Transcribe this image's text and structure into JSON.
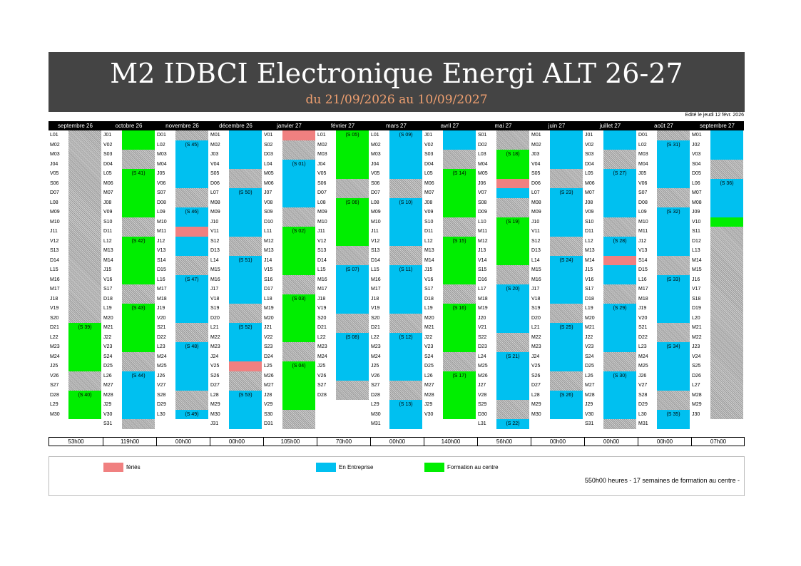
{
  "header": {
    "title": "M2 IDBCI Electronique Energi ALT 26-27",
    "subtitle": "du 21/09/2026 au 10/09/2027",
    "edited": "Edité le jeudi 12 févr. 2026"
  },
  "colors": {
    "holiday": "#f08080",
    "company": "#00c0f0",
    "training": "#00ee00",
    "title_bg": "#444444",
    "subtitle": "#f0a070"
  },
  "months": [
    {
      "name": "septembre 26",
      "start_dow": 1,
      "days": 30,
      "segments": [
        [
          "hatch",
          1,
          20
        ],
        [
          "green",
          21,
          25
        ],
        [
          "hatch",
          26,
          27
        ],
        [
          "green",
          28,
          30
        ]
      ],
      "labels": [
        [
          21,
          "(S 39)"
        ],
        [
          28,
          "(S 40)"
        ]
      ]
    },
    {
      "name": "octobre 26",
      "start_dow": 4,
      "days": 31,
      "segments": [
        [
          "hatch",
          1,
          1
        ],
        [
          "green",
          1,
          2
        ],
        [
          "hatch",
          3,
          4
        ],
        [
          "green",
          5,
          9
        ],
        [
          "hatch",
          10,
          11
        ],
        [
          "green",
          12,
          16
        ],
        [
          "hatch",
          17,
          18
        ],
        [
          "green",
          19,
          23
        ],
        [
          "hatch",
          24,
          25
        ],
        [
          "blue",
          26,
          30
        ],
        [
          "hatch",
          31,
          31
        ]
      ],
      "labels": [
        [
          5,
          "(S 41)"
        ],
        [
          12,
          "(S 42)"
        ],
        [
          19,
          "(S 43)"
        ],
        [
          26,
          "(S 44)"
        ]
      ]
    },
    {
      "name": "novembre 26",
      "start_dow": 0,
      "days": 30,
      "segments": [
        [
          "hatch",
          1,
          1
        ],
        [
          "blue",
          2,
          6
        ],
        [
          "hatch",
          7,
          8
        ],
        [
          "blue",
          9,
          10
        ],
        [
          "pink",
          11,
          11
        ],
        [
          "blue",
          12,
          13
        ],
        [
          "hatch",
          14,
          15
        ],
        [
          "blue",
          16,
          20
        ],
        [
          "hatch",
          21,
          22
        ],
        [
          "blue",
          23,
          27
        ],
        [
          "hatch",
          28,
          29
        ],
        [
          "blue",
          30,
          30
        ]
      ],
      "labels": [
        [
          2,
          "(S 45)"
        ],
        [
          9,
          "(S 46)"
        ],
        [
          16,
          "(S 47)"
        ],
        [
          23,
          "(S 48)"
        ],
        [
          30,
          "(S 49)"
        ]
      ]
    },
    {
      "name": "décembre 26",
      "start_dow": 2,
      "days": 31,
      "segments": [
        [
          "blue",
          1,
          4
        ],
        [
          "hatch",
          5,
          6
        ],
        [
          "blue",
          7,
          11
        ],
        [
          "hatch",
          12,
          13
        ],
        [
          "blue",
          14,
          18
        ],
        [
          "hatch",
          19,
          20
        ],
        [
          "blue",
          21,
          24
        ],
        [
          "pink",
          25,
          25
        ],
        [
          "hatch",
          26,
          27
        ],
        [
          "blue",
          28,
          31
        ]
      ],
      "labels": [
        [
          7,
          "(S 50)"
        ],
        [
          14,
          "(S 51)"
        ],
        [
          21,
          "(S 52)"
        ],
        [
          28,
          "(S 53)"
        ]
      ]
    },
    {
      "name": "janvier 27",
      "start_dow": 5,
      "days": 31,
      "segments": [
        [
          "pink",
          1,
          1
        ],
        [
          "hatch",
          2,
          3
        ],
        [
          "blue",
          4,
          8
        ],
        [
          "hatch",
          9,
          10
        ],
        [
          "green",
          11,
          15
        ],
        [
          "hatch",
          16,
          17
        ],
        [
          "green",
          18,
          22
        ],
        [
          "hatch",
          23,
          24
        ],
        [
          "green",
          25,
          29
        ],
        [
          "hatch",
          30,
          31
        ]
      ],
      "labels": [
        [
          4,
          "(S 01)"
        ],
        [
          11,
          "(S 02)"
        ],
        [
          18,
          "(S 03)"
        ],
        [
          25,
          "(S 04)"
        ]
      ]
    },
    {
      "name": "février 27",
      "start_dow": 1,
      "days": 28,
      "segments": [
        [
          "green",
          1,
          5
        ],
        [
          "hatch",
          6,
          7
        ],
        [
          "green",
          8,
          12
        ],
        [
          "hatch",
          13,
          14
        ],
        [
          "blue",
          15,
          19
        ],
        [
          "hatch",
          20,
          21
        ],
        [
          "blue",
          22,
          26
        ],
        [
          "hatch",
          27,
          28
        ]
      ],
      "labels": [
        [
          1,
          "(S 05)"
        ],
        [
          8,
          "(S 06)"
        ],
        [
          15,
          "(S 07)"
        ],
        [
          22,
          "(S 08)"
        ]
      ]
    },
    {
      "name": "mars 27",
      "start_dow": 1,
      "days": 31,
      "segments": [
        [
          "blue",
          1,
          5
        ],
        [
          "hatch",
          6,
          7
        ],
        [
          "blue",
          8,
          12
        ],
        [
          "hatch",
          13,
          14
        ],
        [
          "blue",
          15,
          19
        ],
        [
          "hatch",
          20,
          21
        ],
        [
          "blue",
          22,
          26
        ],
        [
          "hatch",
          27,
          28
        ],
        [
          "blue",
          29,
          31
        ]
      ],
      "labels": [
        [
          1,
          "(S 09)"
        ],
        [
          8,
          "(S 10)"
        ],
        [
          15,
          "(S 11)"
        ],
        [
          22,
          "(S 12)"
        ],
        [
          29,
          "(S 13)"
        ]
      ]
    },
    {
      "name": "avril 27",
      "start_dow": 4,
      "days": 30,
      "segments": [
        [
          "blue",
          1,
          2
        ],
        [
          "hatch",
          3,
          4
        ],
        [
          "green",
          5,
          9
        ],
        [
          "hatch",
          10,
          11
        ],
        [
          "green",
          12,
          16
        ],
        [
          "hatch",
          17,
          18
        ],
        [
          "green",
          19,
          23
        ],
        [
          "hatch",
          24,
          25
        ],
        [
          "green",
          26,
          30
        ]
      ],
      "labels": [
        [
          5,
          "(S 14)"
        ],
        [
          12,
          "(S 15)"
        ],
        [
          19,
          "(S 16)"
        ],
        [
          26,
          "(S 17)"
        ]
      ]
    },
    {
      "name": "mai 27",
      "start_dow": 6,
      "days": 31,
      "segments": [
        [
          "hatch",
          1,
          2
        ],
        [
          "green",
          3,
          5
        ],
        [
          "pink",
          6,
          6
        ],
        [
          "blue",
          7,
          7
        ],
        [
          "hatch",
          8,
          9
        ],
        [
          "green",
          10,
          14
        ],
        [
          "hatch",
          15,
          16
        ],
        [
          "blue",
          17,
          21
        ],
        [
          "hatch",
          22,
          23
        ],
        [
          "blue",
          24,
          28
        ],
        [
          "hatch",
          29,
          30
        ],
        [
          "blue",
          31,
          31
        ]
      ],
      "labels": [
        [
          3,
          "(S 18)"
        ],
        [
          10,
          "(S 19)"
        ],
        [
          17,
          "(S 20)"
        ],
        [
          24,
          "(S 21)"
        ],
        [
          31,
          "(S 22)"
        ]
      ]
    },
    {
      "name": "juin 27",
      "start_dow": 2,
      "days": 30,
      "segments": [
        [
          "blue",
          1,
          4
        ],
        [
          "hatch",
          5,
          6
        ],
        [
          "blue",
          7,
          11
        ],
        [
          "hatch",
          12,
          13
        ],
        [
          "blue",
          14,
          18
        ],
        [
          "hatch",
          19,
          20
        ],
        [
          "blue",
          21,
          25
        ],
        [
          "hatch",
          26,
          27
        ],
        [
          "blue",
          28,
          30
        ]
      ],
      "labels": [
        [
          7,
          "(S 23)"
        ],
        [
          14,
          "(S 24)"
        ],
        [
          21,
          "(S 25)"
        ],
        [
          28,
          "(S 26)"
        ]
      ]
    },
    {
      "name": "juillet 27",
      "start_dow": 4,
      "days": 31,
      "segments": [
        [
          "blue",
          1,
          2
        ],
        [
          "hatch",
          3,
          4
        ],
        [
          "blue",
          5,
          9
        ],
        [
          "hatch",
          10,
          11
        ],
        [
          "blue",
          12,
          13
        ],
        [
          "pink",
          14,
          14
        ],
        [
          "blue",
          15,
          16
        ],
        [
          "hatch",
          17,
          18
        ],
        [
          "blue",
          19,
          23
        ],
        [
          "hatch",
          24,
          25
        ],
        [
          "blue",
          26,
          30
        ],
        [
          "hatch",
          31,
          31
        ]
      ],
      "labels": [
        [
          5,
          "(S 27)"
        ],
        [
          12,
          "(S 28)"
        ],
        [
          19,
          "(S 29)"
        ],
        [
          26,
          "(S 30)"
        ]
      ]
    },
    {
      "name": "août 27",
      "start_dow": 0,
      "days": 31,
      "segments": [
        [
          "hatch",
          1,
          1
        ],
        [
          "blue",
          2,
          6
        ],
        [
          "hatch",
          7,
          8
        ],
        [
          "blue",
          9,
          13
        ],
        [
          "hatch",
          14,
          15
        ],
        [
          "blue",
          16,
          20
        ],
        [
          "hatch",
          21,
          22
        ],
        [
          "blue",
          23,
          27
        ],
        [
          "hatch",
          28,
          29
        ],
        [
          "blue",
          30,
          31
        ]
      ],
      "labels": [
        [
          2,
          "(S 31)"
        ],
        [
          9,
          "(S 32)"
        ],
        [
          16,
          "(S 33)"
        ],
        [
          23,
          "(S 34)"
        ],
        [
          30,
          "(S 35)"
        ]
      ]
    },
    {
      "name": "septembre 27",
      "start_dow": 3,
      "days": 30,
      "segments": [
        [
          "blue",
          1,
          3
        ],
        [
          "hatch",
          4,
          5
        ],
        [
          "blue",
          6,
          9
        ],
        [
          "green",
          10,
          10
        ],
        [
          "hatch",
          11,
          30
        ]
      ],
      "labels": [
        [
          6,
          "(S 36)"
        ]
      ]
    }
  ],
  "day_letters": [
    "D",
    "L",
    "M",
    "M",
    "J",
    "V",
    "S"
  ],
  "totals": [
    "53h00",
    "119h00",
    "00h00",
    "00h00",
    "105h00",
    "70h00",
    "00h00",
    "140h00",
    "56h00",
    "00h00",
    "00h00",
    "00h00",
    "07h00"
  ],
  "legend": {
    "holiday": "fériés",
    "company": "En Entreprise",
    "training": "Formation au centre",
    "summary": "550h00 heures - 17 semaines de formation au centre -"
  }
}
